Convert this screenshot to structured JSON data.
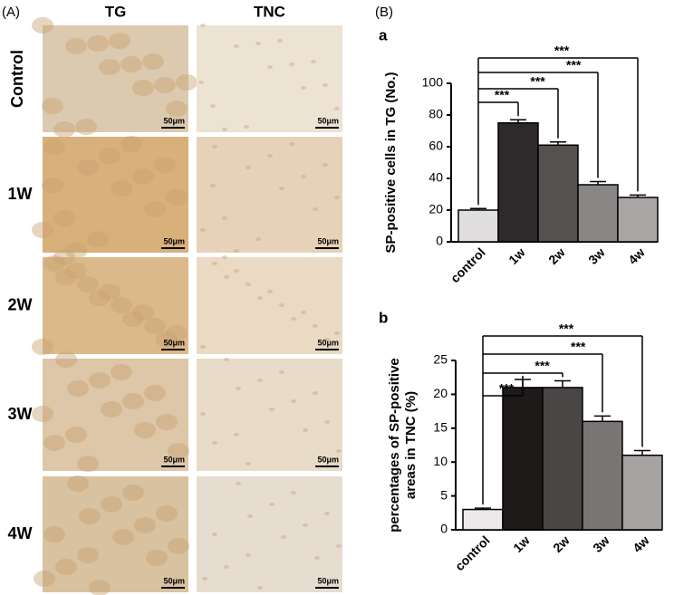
{
  "panel_a": {
    "label": "(A)",
    "columns": [
      "TG",
      "TNC"
    ],
    "rows": [
      "Control",
      "1W",
      "2W",
      "3W",
      "4W"
    ],
    "scale_bar": "50μm"
  },
  "panel_b_label": "(B)",
  "chart_data": [
    {
      "type": "bar",
      "panel_label": "a",
      "y_label": [
        "SP-positive cells in TG (No.)"
      ],
      "categories": [
        "control",
        "1w",
        "2w",
        "3w",
        "4w"
      ],
      "values": [
        20,
        75,
        61,
        36,
        28
      ],
      "errors": [
        1,
        2,
        2,
        2,
        1.5
      ],
      "colors": [
        "#e0dede",
        "#2e2a2b",
        "#545151",
        "#8a8585",
        "#aba6a6"
      ],
      "ylim": [
        0,
        100
      ],
      "yticks": [
        0,
        20,
        40,
        60,
        80,
        100
      ],
      "annotations": [
        "***",
        "***",
        "***",
        "***"
      ]
    },
    {
      "type": "bar",
      "panel_label": "b",
      "y_label": [
        "percentages of SP-positive",
        "areas in TNC (%)"
      ],
      "categories": [
        "control",
        "1w",
        "2w",
        "3w",
        "4w"
      ],
      "values": [
        3,
        21,
        21,
        16,
        11
      ],
      "errors": [
        0.2,
        1.2,
        1,
        0.8,
        0.7
      ],
      "colors": [
        "#ebe9e9",
        "#1e1a1a",
        "#4a4646",
        "#7a7575",
        "#a8a3a3"
      ],
      "ylim": [
        0,
        25
      ],
      "yticks": [
        0,
        5,
        10,
        15,
        20,
        25
      ],
      "annotations": [
        "***",
        "***",
        "***",
        "***"
      ]
    }
  ]
}
